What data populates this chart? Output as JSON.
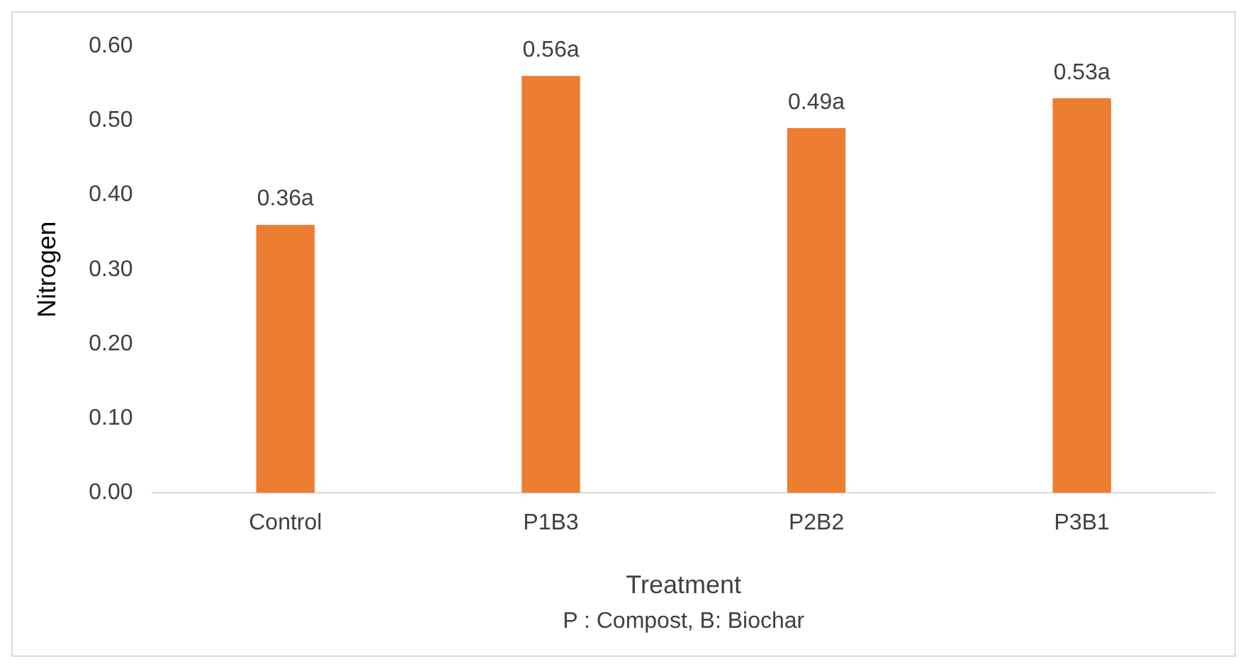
{
  "chart_data": {
    "type": "bar",
    "xlabel": "Treatment",
    "ylabel": "Nitrogen",
    "categories": [
      "Control",
      "P1B3",
      "P2B2",
      "P3B1"
    ],
    "values": [
      0.36,
      0.56,
      0.49,
      0.53
    ],
    "value_labels": [
      "0.36a",
      "0.56a",
      "0.49a",
      "0.53a"
    ],
    "color": "#ed7d31",
    "ylim": [
      0,
      0.6
    ],
    "yticks": [
      {
        "value": 0,
        "label": "0.00"
      },
      {
        "value": 0.1,
        "label": "0.10"
      },
      {
        "value": 0.2,
        "label": "0.20"
      },
      {
        "value": 0.3,
        "label": "0.30"
      },
      {
        "value": 0.4,
        "label": "0.40"
      },
      {
        "value": 0.5,
        "label": "0.50"
      },
      {
        "value": 0.6,
        "label": "0.60"
      }
    ],
    "grid": false,
    "legend": false,
    "annotations": [
      "P : Compost, B: Biochar"
    ]
  }
}
